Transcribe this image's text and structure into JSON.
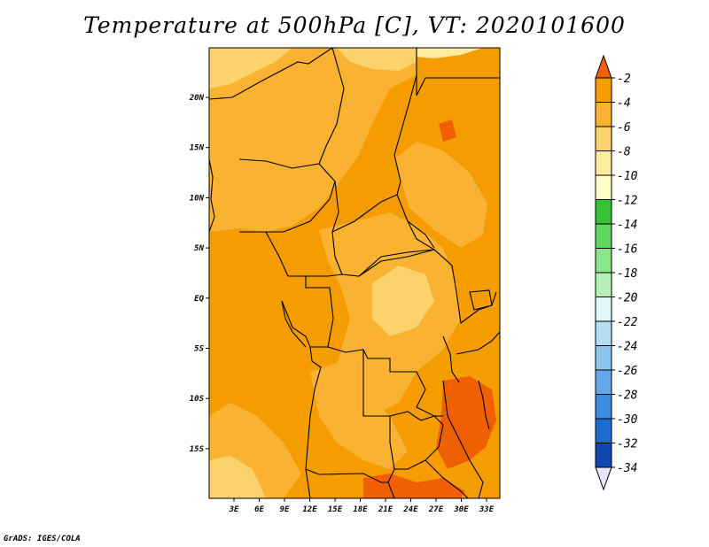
{
  "title": "Temperature at 500hPa [C], VT: 2020101600",
  "credit": "GrADS: IGES/COLA",
  "colors": {
    "darkest": "#f06000",
    "dark": "#f59c00",
    "mid": "#f9b232",
    "light": "#fcd26c",
    "pale": "#fdeca0",
    "frame": "#000000"
  },
  "map": {
    "lon_labels": [
      "3E",
      "6E",
      "9E",
      "12E",
      "15E",
      "18E",
      "21E",
      "24E",
      "27E",
      "30E",
      "33E"
    ],
    "lat_labels": [
      "20N",
      "15N",
      "10N",
      "5N",
      "EQ",
      "5S",
      "10S",
      "15S"
    ]
  },
  "colorbar": {
    "labels": [
      "-2",
      "-4",
      "-6",
      "-8",
      "-10",
      "-12",
      "-14",
      "-16",
      "-18",
      "-20",
      "-22",
      "-24",
      "-26",
      "-28",
      "-30",
      "-32",
      "-34"
    ],
    "colors": [
      "#f06000",
      "#f59c00",
      "#f9b232",
      "#fcd26c",
      "#fdeca0",
      "#fffcc8",
      "#38c238",
      "#60d660",
      "#8ae68a",
      "#b6f0b6",
      "#e0f8f8",
      "#b4dcf4",
      "#8cc4f0",
      "#64a8ea",
      "#3c8ce0",
      "#1e6ad0",
      "#1046b0",
      "#0a1c7a"
    ],
    "lower_arrow_color": "#e6e6f8"
  }
}
